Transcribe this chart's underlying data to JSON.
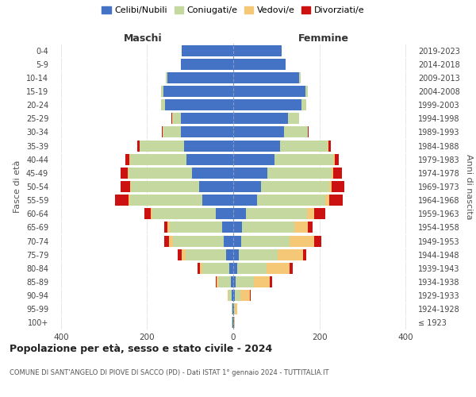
{
  "age_groups": [
    "100+",
    "95-99",
    "90-94",
    "85-89",
    "80-84",
    "75-79",
    "70-74",
    "65-69",
    "60-64",
    "55-59",
    "50-54",
    "45-49",
    "40-44",
    "35-39",
    "30-34",
    "25-29",
    "20-24",
    "15-19",
    "10-14",
    "5-9",
    "0-4"
  ],
  "birth_years": [
    "≤ 1923",
    "1924-1928",
    "1929-1933",
    "1934-1938",
    "1939-1943",
    "1944-1948",
    "1949-1953",
    "1954-1958",
    "1959-1963",
    "1964-1968",
    "1969-1973",
    "1974-1978",
    "1979-1983",
    "1984-1988",
    "1989-1993",
    "1994-1998",
    "1999-2003",
    "2004-2008",
    "2009-2013",
    "2014-2018",
    "2019-2023"
  ],
  "maschi": {
    "celibi": [
      2,
      2,
      3,
      5,
      10,
      16,
      22,
      25,
      40,
      72,
      80,
      95,
      108,
      115,
      122,
      122,
      158,
      162,
      152,
      122,
      120
    ],
    "coniugati": [
      1,
      2,
      8,
      30,
      62,
      95,
      118,
      122,
      148,
      168,
      158,
      148,
      132,
      102,
      42,
      20,
      10,
      5,
      5,
      0,
      0
    ],
    "vedovi": [
      0,
      0,
      2,
      4,
      6,
      8,
      10,
      5,
      4,
      3,
      2,
      2,
      1,
      1,
      0,
      0,
      0,
      0,
      0,
      0,
      0
    ],
    "divorziati": [
      0,
      0,
      0,
      2,
      4,
      10,
      10,
      8,
      14,
      32,
      22,
      16,
      10,
      5,
      2,
      1,
      0,
      0,
      0,
      0,
      0
    ]
  },
  "femmine": {
    "nubili": [
      2,
      2,
      4,
      5,
      10,
      12,
      18,
      20,
      30,
      55,
      65,
      80,
      95,
      108,
      118,
      128,
      158,
      168,
      152,
      122,
      112
    ],
    "coniugate": [
      0,
      2,
      12,
      42,
      68,
      92,
      112,
      122,
      142,
      158,
      158,
      148,
      138,
      112,
      55,
      25,
      12,
      5,
      5,
      0,
      0
    ],
    "vedove": [
      2,
      5,
      22,
      38,
      52,
      58,
      58,
      32,
      15,
      10,
      5,
      4,
      2,
      1,
      0,
      0,
      0,
      0,
      0,
      0,
      0
    ],
    "divorziate": [
      0,
      0,
      2,
      5,
      8,
      8,
      16,
      10,
      26,
      32,
      30,
      20,
      10,
      5,
      2,
      0,
      0,
      0,
      0,
      0,
      0
    ]
  },
  "colors": {
    "celibi": "#4472C4",
    "coniugati": "#C5D8A0",
    "vedovi": "#F5C878",
    "divorziati": "#CC1111"
  },
  "xlim": 420,
  "xticks": [
    -400,
    -200,
    0,
    200,
    400
  ],
  "title": "Popolazione per età, sesso e stato civile - 2024",
  "subtitle": "COMUNE DI SANT'ANGELO DI PIOVE DI SACCO (PD) - Dati ISTAT 1° gennaio 2024 - TUTTITALIA.IT",
  "xlabel_maschi": "Maschi",
  "xlabel_femmine": "Femmine",
  "ylabel": "Fasce di età",
  "ylabel_right": "Anni di nascita",
  "legend_labels": [
    "Celibi/Nubili",
    "Coniugati/e",
    "Vedovi/e",
    "Divorziati/e"
  ],
  "bg_color": "#FFFFFF",
  "grid_color": "#DDDDDD",
  "bar_height": 0.82
}
